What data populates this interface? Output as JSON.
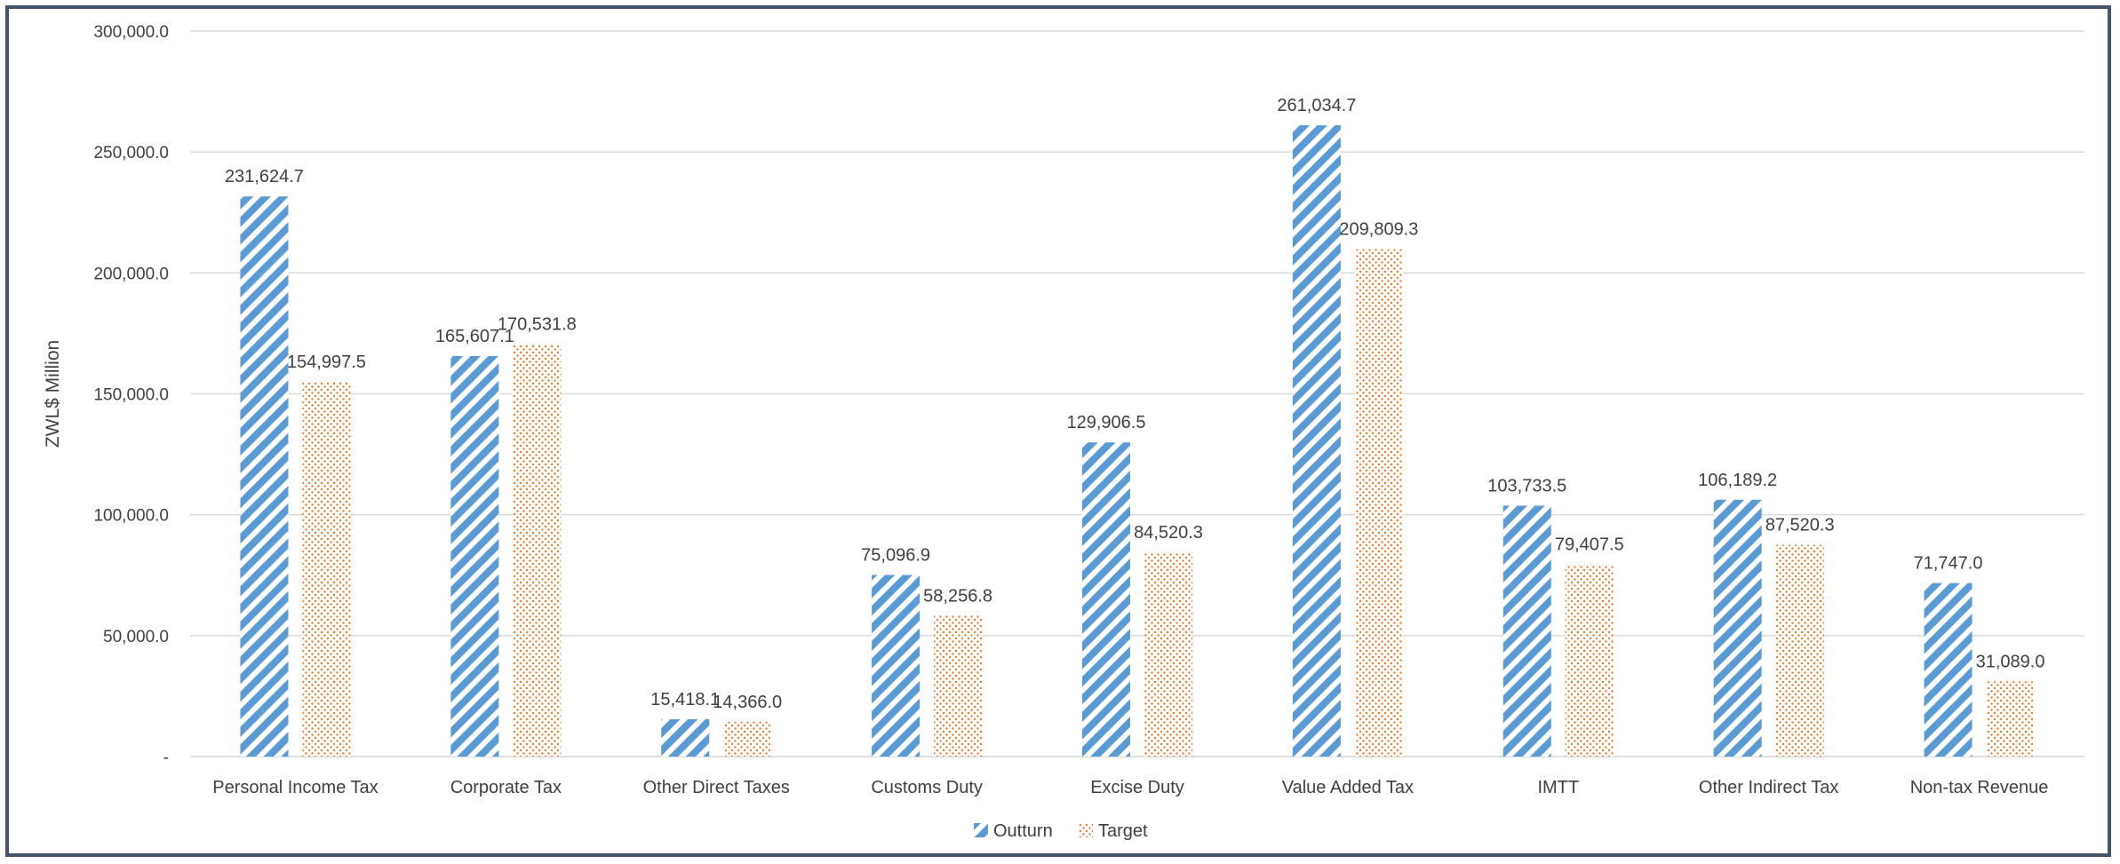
{
  "chart_data": {
    "type": "bar",
    "categories": [
      "Personal Income Tax",
      "Corporate Tax",
      "Other Direct Taxes",
      "Customs  Duty",
      "Excise Duty",
      "Value Added Tax",
      "IMTT",
      "Other Indirect Tax",
      "Non-tax Revenue"
    ],
    "series": [
      {
        "name": "Outturn",
        "values": [
          231624.7,
          165607.1,
          15418.1,
          75096.9,
          129906.5,
          261034.7,
          103733.5,
          106189.2,
          71747.0
        ],
        "labels": [
          "231,624.7",
          "165,607.1",
          "15,418.1",
          "75,096.9",
          "129,906.5",
          "261,034.7",
          "103,733.5",
          "106,189.2",
          "71,747.0"
        ],
        "color": "#5b9bd5",
        "pattern": "diagonal-stripes"
      },
      {
        "name": "Target",
        "values": [
          154997.5,
          170531.8,
          14366.0,
          58256.8,
          84520.3,
          209809.3,
          79407.5,
          87520.3,
          31089.0
        ],
        "labels": [
          "154,997.5",
          "170,531.8",
          "14,366.0",
          "58,256.8",
          "84,520.3",
          "209,809.3",
          "79,407.5",
          "87,520.3",
          "31,089.0"
        ],
        "color": "#ed7d31",
        "pattern": "dots"
      }
    ],
    "ylabel": "ZWL$ Million",
    "xlabel": "",
    "ylim": [
      0,
      300000
    ],
    "yticks": [
      0,
      50000,
      100000,
      150000,
      200000,
      250000,
      300000
    ],
    "ytick_labels": [
      "-",
      "50,000.0",
      "100,000.0",
      "150,000.0",
      "200,000.0",
      "250,000.0",
      "300,000.0"
    ],
    "grid": true,
    "legend": "bottom-center"
  }
}
